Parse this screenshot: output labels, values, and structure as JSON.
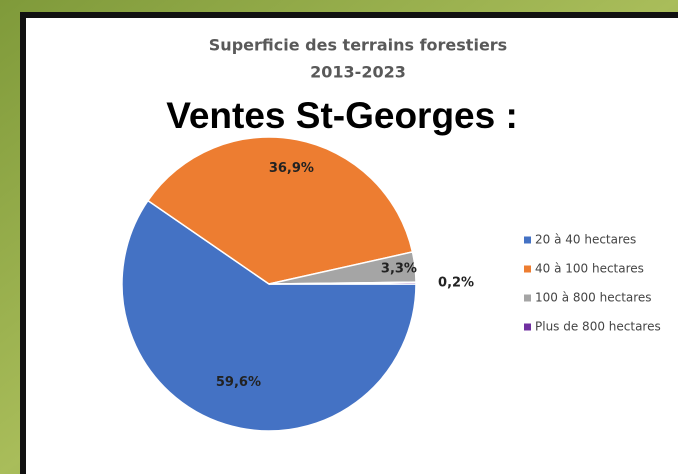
{
  "chart_data": {
    "type": "pie",
    "title": "Superficie des terrains forestiers",
    "subtitle": "2013-2023",
    "annotation": "Ventes St-Georges :",
    "categories": [
      "20 à 40 hectares",
      "40 à 100 hectares",
      "100 à 800 hectares",
      "Plus de 800 hectares"
    ],
    "values": [
      59.6,
      36.9,
      3.3,
      0.2
    ],
    "value_labels": [
      "59,6%",
      "36,9%",
      "3,3%",
      "0,2%"
    ],
    "colors": [
      "#4472c4",
      "#ed7d31",
      "#a5a5a5",
      "#7030a0"
    ],
    "legend": "right"
  }
}
